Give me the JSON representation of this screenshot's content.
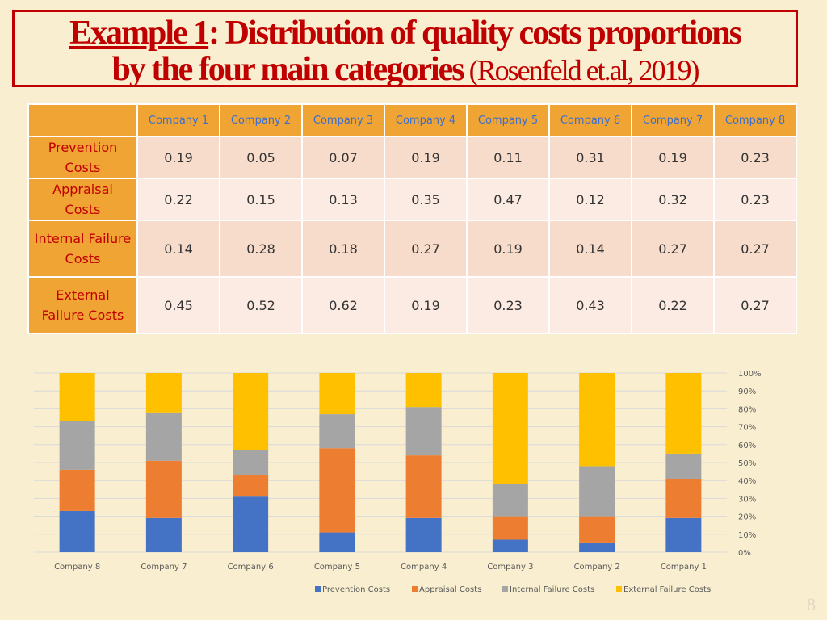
{
  "title": {
    "example": "Example 1",
    "rest1": ": Distribution of quality costs proportions",
    "line2_bold": "by the four main categories",
    "line2_citation": " (Rosenfeld et.al, 2019)"
  },
  "table": {
    "headers": [
      "Company 1",
      "Company 2",
      "Company 3",
      "Company 4",
      "Company 5",
      "Company 6",
      "Company 7",
      "Company 8"
    ],
    "rows": [
      {
        "label": [
          "Prevention",
          "Costs"
        ],
        "values": [
          "0.19",
          "0.05",
          "0.07",
          "0.19",
          "0.11",
          "0.31",
          "0.19",
          "0.23"
        ]
      },
      {
        "label": [
          "Appraisal",
          "Costs"
        ],
        "values": [
          "0.22",
          "0.15",
          "0.13",
          "0.35",
          "0.47",
          "0.12",
          "0.32",
          "0.23"
        ]
      },
      {
        "label": [
          "Internal Failure",
          "Costs"
        ],
        "values": [
          "0.14",
          "0.28",
          "0.18",
          "0.27",
          "0.19",
          "0.14",
          "0.27",
          "0.27"
        ]
      },
      {
        "label": [
          "External",
          "Failure Costs"
        ],
        "values": [
          "0.45",
          "0.52",
          "0.62",
          "0.19",
          "0.23",
          "0.43",
          "0.22",
          "0.27"
        ]
      }
    ]
  },
  "colors": {
    "prevention": "#4472c4",
    "appraisal": "#ed7d31",
    "internal": "#a5a5a5",
    "external": "#ffc000"
  },
  "chart_data": {
    "type": "bar",
    "stacked": "percent",
    "categories": [
      "Company 8",
      "Company 7",
      "Company 6",
      "Company 5",
      "Company 4",
      "Company 3",
      "Company 2",
      "Company 1"
    ],
    "series": [
      {
        "name": "Prevention Costs",
        "values": [
          0.23,
          0.19,
          0.31,
          0.11,
          0.19,
          0.07,
          0.05,
          0.19
        ]
      },
      {
        "name": "Appraisal Costs",
        "values": [
          0.23,
          0.32,
          0.12,
          0.47,
          0.35,
          0.13,
          0.15,
          0.22
        ]
      },
      {
        "name": "Internal Failure Costs",
        "values": [
          0.27,
          0.27,
          0.14,
          0.19,
          0.27,
          0.18,
          0.28,
          0.14
        ]
      },
      {
        "name": "External Failure Costs",
        "values": [
          0.27,
          0.22,
          0.43,
          0.23,
          0.19,
          0.62,
          0.52,
          0.45
        ]
      }
    ],
    "yticks": [
      "0%",
      "10%",
      "20%",
      "30%",
      "40%",
      "50%",
      "60%",
      "70%",
      "80%",
      "90%",
      "100%"
    ],
    "ylim": [
      0,
      1
    ],
    "grid": true,
    "legend": "bottom",
    "yaxis_position": "right"
  },
  "page_number": "8"
}
